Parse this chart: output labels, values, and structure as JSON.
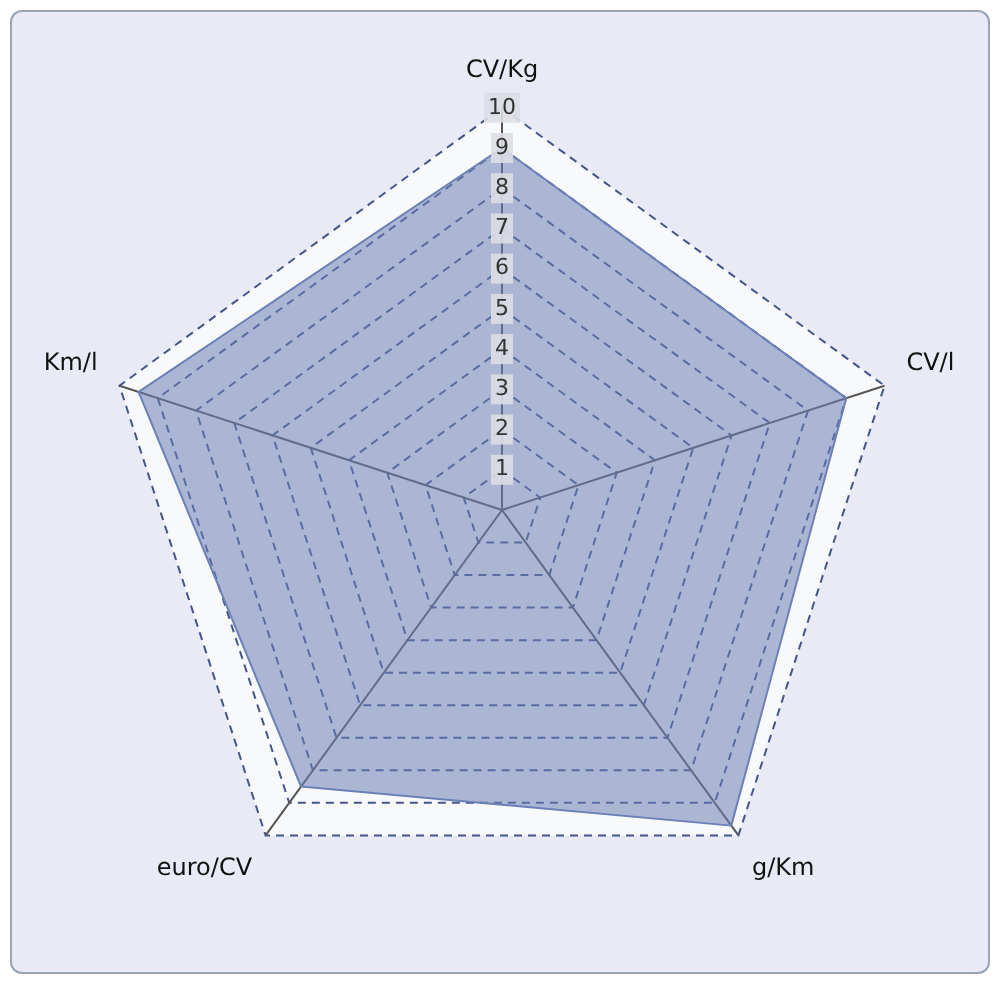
{
  "chart_data": {
    "type": "radar",
    "categories": [
      "CV/Kg",
      "CV/l",
      "g/Km",
      "euro/CV",
      "Km/l"
    ],
    "series": [
      {
        "color": "#6b80b6",
        "values": [
          9,
          9,
          9.7,
          8.5,
          9.5
        ]
      }
    ],
    "ylim": [
      0,
      10
    ],
    "yticks": [
      1,
      2,
      3,
      4,
      5,
      6,
      7,
      8,
      9,
      10
    ],
    "grid": true,
    "legend": false,
    "marker": "none"
  }
}
